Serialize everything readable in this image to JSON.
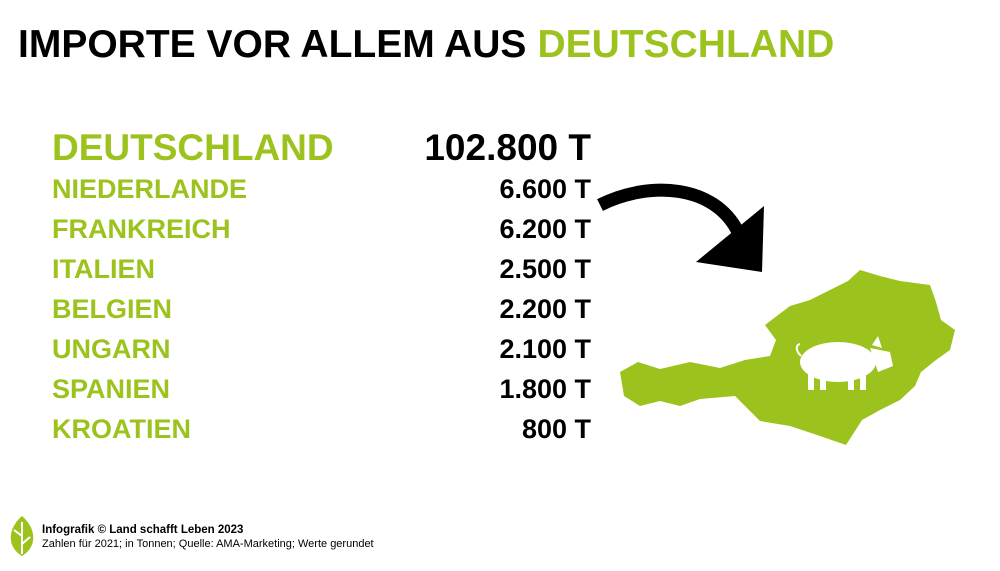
{
  "title": {
    "text": "IMPORTE VOR ALLEM AUS",
    "highlight": "DEUTSCHLAND"
  },
  "table": {
    "rows": [
      [
        "DEUTSCHLAND",
        "102.800 T"
      ],
      [
        "NIEDERLANDE",
        "6.600 T"
      ],
      [
        "FRANKREICH",
        "6.200 T"
      ],
      [
        "ITALIEN",
        "2.500 T"
      ],
      [
        "BELGIEN",
        "2.200 T"
      ],
      [
        "UNGARN",
        "2.100 T"
      ],
      [
        "SPANIEN",
        "1.800 T"
      ],
      [
        "KROATIEN",
        "800 T"
      ]
    ]
  },
  "footer": {
    "credit": "Infografik © Land schafft Leben 2023",
    "note": "Zahlen für 2021; in Tonnen; Quelle: AMA-Marketing; Werte gerundet"
  }
}
